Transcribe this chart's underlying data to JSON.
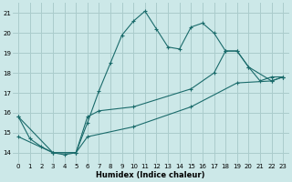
{
  "title": "",
  "xlabel": "Humidex (Indice chaleur)",
  "ylabel": "",
  "background_color": "#cce8e8",
  "grid_color": "#aacccc",
  "line_color": "#1a6b6b",
  "xlim": [
    -0.5,
    23.5
  ],
  "ylim": [
    13.5,
    21.5
  ],
  "yticks": [
    14,
    15,
    16,
    17,
    18,
    19,
    20,
    21
  ],
  "xticks": [
    0,
    1,
    2,
    3,
    4,
    5,
    6,
    7,
    8,
    9,
    10,
    11,
    12,
    13,
    14,
    15,
    16,
    17,
    18,
    19,
    20,
    21,
    22,
    23
  ],
  "line1_x": [
    0,
    1,
    2,
    3,
    4,
    5,
    6,
    7,
    8,
    9,
    10,
    11,
    12,
    13,
    14,
    15,
    16,
    17,
    18,
    19,
    20,
    21,
    22,
    23
  ],
  "line1_y": [
    15.8,
    14.7,
    14.3,
    14.0,
    13.9,
    14.0,
    15.5,
    17.1,
    18.5,
    19.9,
    20.6,
    21.1,
    20.2,
    19.3,
    19.2,
    20.3,
    20.5,
    20.0,
    19.1,
    19.1,
    18.3,
    17.6,
    17.8,
    17.8
  ],
  "line2_x": [
    0,
    3,
    5,
    6,
    7,
    10,
    15,
    17,
    18,
    19,
    20,
    22,
    23
  ],
  "line2_y": [
    15.8,
    14.0,
    14.0,
    15.8,
    16.1,
    16.3,
    17.2,
    18.0,
    19.1,
    19.1,
    18.3,
    17.6,
    17.8
  ],
  "line3_x": [
    0,
    3,
    5,
    6,
    10,
    15,
    19,
    22,
    23
  ],
  "line3_y": [
    14.8,
    14.0,
    14.0,
    14.8,
    15.3,
    16.3,
    17.5,
    17.6,
    17.8
  ]
}
